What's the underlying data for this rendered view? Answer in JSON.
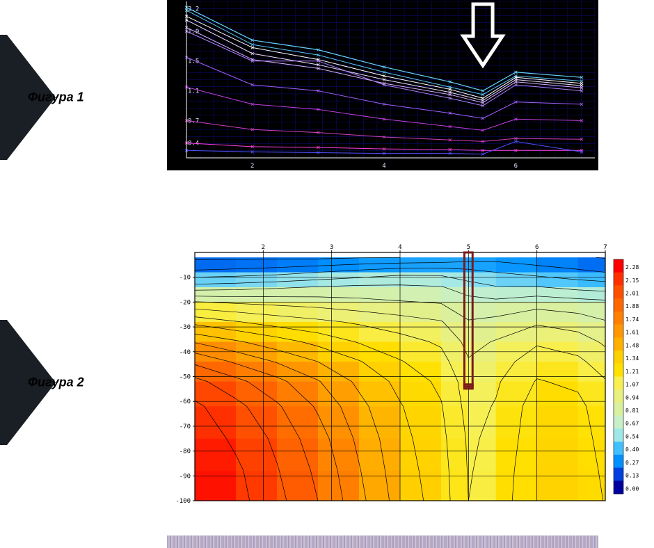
{
  "labels": {
    "figure1": "Фигура 1",
    "figure2": "Фигура 2"
  },
  "chart1": {
    "type": "line",
    "background_color": "#000000",
    "grid_color": "#0b0b6b",
    "axis_color": "#ffffff",
    "tick_font_color": "#e0e0ff",
    "tick_fontsize": 9,
    "xlim": [
      1,
      7.2
    ],
    "ylim": [
      0.2,
      2.3
    ],
    "xticks": [
      2,
      4,
      6
    ],
    "yticks": [
      0.4,
      0.7,
      1.1,
      1.5,
      1.9,
      2.2
    ],
    "x_points": [
      1,
      2,
      3,
      4,
      5,
      5.5,
      6,
      7
    ],
    "series": [
      {
        "color": "#66d4ff",
        "width": 1.2,
        "y": [
          2.22,
          1.78,
          1.65,
          1.42,
          1.22,
          1.1,
          1.35,
          1.28
        ]
      },
      {
        "color": "#55c8f5",
        "width": 1.0,
        "y": [
          2.18,
          1.72,
          1.58,
          1.35,
          1.15,
          1.05,
          1.3,
          1.23
        ]
      },
      {
        "color": "#ffffff",
        "width": 1.0,
        "y": [
          2.1,
          1.68,
          1.52,
          1.3,
          1.12,
          1.0,
          1.28,
          1.2
        ]
      },
      {
        "color": "#f0e0ff",
        "width": 1.0,
        "y": [
          2.05,
          1.6,
          1.45,
          1.25,
          1.08,
          0.97,
          1.25,
          1.17
        ]
      },
      {
        "color": "#d8b0ff",
        "width": 1.0,
        "y": [
          1.95,
          1.52,
          1.4,
          1.2,
          1.05,
          0.94,
          1.22,
          1.14
        ]
      },
      {
        "color": "#b080ff",
        "width": 1.0,
        "y": [
          1.9,
          1.5,
          1.5,
          1.18,
          1.0,
          0.9,
          1.18,
          1.1
        ]
      },
      {
        "color": "#a060ff",
        "width": 1.0,
        "y": [
          1.55,
          1.18,
          1.1,
          0.92,
          0.8,
          0.73,
          0.95,
          0.92
        ]
      },
      {
        "color": "#c040e0",
        "width": 1.0,
        "y": [
          1.15,
          0.92,
          0.85,
          0.72,
          0.62,
          0.57,
          0.72,
          0.7
        ]
      },
      {
        "color": "#d040c0",
        "width": 1.0,
        "y": [
          0.7,
          0.58,
          0.54,
          0.48,
          0.44,
          0.42,
          0.46,
          0.45
        ]
      },
      {
        "color": "#ff40e0",
        "width": 1.0,
        "y": [
          0.4,
          0.35,
          0.34,
          0.32,
          0.31,
          0.3,
          0.3,
          0.3
        ]
      },
      {
        "color": "#5050ff",
        "width": 1.0,
        "y": [
          0.3,
          0.28,
          0.27,
          0.26,
          0.26,
          0.25,
          0.42,
          0.28
        ]
      }
    ],
    "arrow": {
      "x": 5.5,
      "color": "#ffffff"
    }
  },
  "chart2": {
    "type": "heatmap",
    "background_color": "#ffffff",
    "grid_color": "#000000",
    "axis_color": "#000000",
    "tick_fontsize": 9,
    "xlim": [
      1,
      7
    ],
    "ylim": [
      -100,
      0
    ],
    "xticks": [
      2,
      3,
      4,
      5,
      6,
      7
    ],
    "yticks": [
      -10,
      -20,
      -30,
      -40,
      -50,
      -60,
      -70,
      -80,
      -90,
      -100
    ],
    "y_rows": [
      -2,
      -8,
      -14,
      -20,
      -28,
      -36,
      -44,
      -52,
      -62,
      -75,
      -88,
      -100
    ],
    "x_cols": [
      1.0,
      1.6,
      2.2,
      2.8,
      3.4,
      4.0,
      4.6,
      5.0,
      5.4,
      6.0,
      6.6,
      7.0
    ],
    "grid_values": [
      [
        0.1,
        0.1,
        0.1,
        0.1,
        0.12,
        0.13,
        0.15,
        0.2,
        0.22,
        0.18,
        0.15,
        0.12
      ],
      [
        0.3,
        0.32,
        0.35,
        0.4,
        0.45,
        0.5,
        0.5,
        0.45,
        0.4,
        0.35,
        0.3,
        0.27
      ],
      [
        0.6,
        0.62,
        0.65,
        0.68,
        0.7,
        0.7,
        0.68,
        0.6,
        0.55,
        0.55,
        0.5,
        0.48
      ],
      [
        0.95,
        0.92,
        0.9,
        0.88,
        0.85,
        0.82,
        0.8,
        0.72,
        0.7,
        0.75,
        0.72,
        0.7
      ],
      [
        1.3,
        1.22,
        1.15,
        1.1,
        1.05,
        1.0,
        0.95,
        0.82,
        0.85,
        0.92,
        0.88,
        0.82
      ],
      [
        1.6,
        1.5,
        1.4,
        1.3,
        1.2,
        1.12,
        1.05,
        0.9,
        0.95,
        1.05,
        1.0,
        0.92
      ],
      [
        1.85,
        1.72,
        1.6,
        1.48,
        1.35,
        1.22,
        1.12,
        0.95,
        1.0,
        1.15,
        1.1,
        1.0
      ],
      [
        2.05,
        1.92,
        1.78,
        1.62,
        1.45,
        1.3,
        1.18,
        1.0,
        1.05,
        1.22,
        1.18,
        1.08
      ],
      [
        2.18,
        2.05,
        1.9,
        1.72,
        1.52,
        1.35,
        1.22,
        1.02,
        1.08,
        1.28,
        1.25,
        1.12
      ],
      [
        2.25,
        2.12,
        1.98,
        1.8,
        1.58,
        1.38,
        1.25,
        1.05,
        1.1,
        1.3,
        1.28,
        1.15
      ],
      [
        2.28,
        2.18,
        2.02,
        1.85,
        1.62,
        1.4,
        1.27,
        1.06,
        1.12,
        1.32,
        1.3,
        1.18
      ],
      [
        2.28,
        2.2,
        2.05,
        1.88,
        1.65,
        1.42,
        1.28,
        1.07,
        1.13,
        1.33,
        1.32,
        1.2
      ]
    ],
    "color_scale": [
      {
        "v": 0.0,
        "c": "#0000a0"
      },
      {
        "v": 0.13,
        "c": "#0040e0"
      },
      {
        "v": 0.27,
        "c": "#0090ff"
      },
      {
        "v": 0.4,
        "c": "#40c0ff"
      },
      {
        "v": 0.54,
        "c": "#a0e8e8"
      },
      {
        "v": 0.67,
        "c": "#c8f0c8"
      },
      {
        "v": 0.81,
        "c": "#d8f0a0"
      },
      {
        "v": 0.94,
        "c": "#e8f080"
      },
      {
        "v": 1.07,
        "c": "#f8f050"
      },
      {
        "v": 1.21,
        "c": "#ffe000"
      },
      {
        "v": 1.34,
        "c": "#ffd000"
      },
      {
        "v": 1.48,
        "c": "#ffb000"
      },
      {
        "v": 1.61,
        "c": "#ff9800"
      },
      {
        "v": 1.74,
        "c": "#ff8000"
      },
      {
        "v": 1.88,
        "c": "#ff6800"
      },
      {
        "v": 2.01,
        "c": "#ff5000"
      },
      {
        "v": 2.15,
        "c": "#ff3000"
      },
      {
        "v": 2.28,
        "c": "#ff0000"
      }
    ],
    "legend_labels": [
      "2.28",
      "2.15",
      "2.01",
      "1.88",
      "1.74",
      "1.61",
      "1.48",
      "1.34",
      "1.21",
      "1.07",
      "0.94",
      "0.81",
      "0.67",
      "0.54",
      "0.40",
      "0.27",
      "0.13",
      "0.00"
    ],
    "marker_rect": {
      "x": 5.0,
      "y_top": 0,
      "y_bot": -54,
      "width_data": 0.12,
      "color": "#7a1a1a",
      "stroke_width": 3
    },
    "contour_color": "#000000",
    "contour_width": 0.7
  }
}
